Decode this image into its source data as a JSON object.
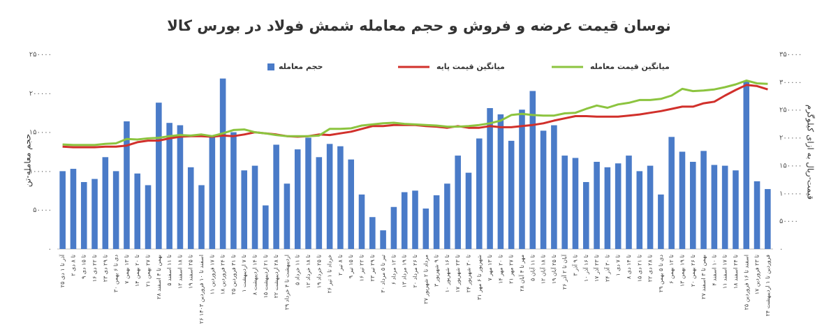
{
  "chart_data": {
    "type": "bar",
    "title": "نوسان قیمت عرضه و فروش و حجم معامله شمش فولاد در بورس کالا",
    "y_label": "حجم معامله-تن",
    "y2_label": "قیمت-ریال به ازای کیلوگرم",
    "categories": [
      "۲۵ آذر تا ۱ دی",
      "۲ تا ۸ دی",
      "۹ تا ۱۵ دی",
      "۱۶ تا ۲۲ دی",
      "۲۳ تا ۲۹ دی",
      "۳۰ دی تا ۶ بهمن",
      "۷ تا ۱۳ بهمن",
      "۱۴ تا ۲۰ بهمن",
      "۲۱ تا ۲۷ بهمن",
      "۲۸ بهمن تا ۴ اسفند",
      "۵ تا ۱۱ اسفند",
      "۱۲ تا ۱۸ اسفند",
      "۱۹ تا ۲۵ اسفند",
      "۲۶ اسفند تا ۱۰ فروردین ۱۴۰۳",
      "۱۱ تا ۱۷ فروردین",
      "۱۸ تا ۲۴ فروردین",
      "۲۵ تا ۳۱ فروردین",
      "۱ تا ۷ اردیبهشت",
      "۸ تا ۱۴ اردیبهشت",
      "۱۵ تا ۲۱ اردیبهشت",
      "۲۲ تا ۲۸ اردیبهشت",
      "۲۹ اردیبهشت تا ۴ خرداد",
      "۵ تا ۱۱ خرداد",
      "۱۲ تا ۱۸ خرداد",
      "۱۹ تا ۲۵ خرداد",
      "۲۶ خرداد تا ۱ تیر",
      "۲ تا ۸ تیر",
      "۹ تا ۱۵ تیر",
      "۱۶ تا ۲۲ تیر",
      "۲۳ تا ۲۹ تیر",
      "۳۰ تیر تا ۵ مرداد",
      "۶ تا ۱۲ مرداد",
      "۱۳ تا ۱۹ مرداد",
      "۲۰ تا ۲۶ مرداد",
      "۲۷ مرداد تا ۲ شهریور",
      "۳ تا ۹ شهریور",
      "۱۰ تا ۱۶ شهریور",
      "۱۷ تا ۲۳ شهریور",
      "۲۴ تا ۳۰ شهریور",
      "۳۱ شهریور تا ۶ مهر",
      "۷ تا ۱۳ مهر",
      "۱۴ تا ۲۰ مهر",
      "۲۱ تا ۲۷ مهر",
      "۲۸ مهر تا ۴ آبان",
      "۵ تا ۱۱ آبان",
      "۱۲ تا ۱۸ آبان",
      "۱۹ تا ۲۵ آبان",
      "۲۶ آبان تا ۲ آذر",
      "۳ تا ۹ آذر",
      "۱۰ تا ۱۶ آذر",
      "۱۷ تا ۲۳ آذر",
      "۲۴ تا ۳۰ آذر",
      "۱ تا ۷ دی",
      "۸ تا ۱۴ دی",
      "۱۵ تا ۲۱ دی",
      "۲۲ تا ۲۸ دی",
      "۲۹ دی تا ۵ بهمن",
      "۶ تا ۱۲ بهمن",
      "۱۳ تا ۱۹ بهمن",
      "۲۰ تا ۲۶ بهمن",
      "۲۷ بهمن تا ۳ اسفند",
      "۴ تا ۱۰ اسفند",
      "۱۱ تا ۱۷ اسفند",
      "۱۸ تا ۲۴ اسفند",
      "۲۵ اسفند تا ۱۶ فروردین",
      "۱۷ تا ۲۳ فروردین",
      "۲۴ فروردین تا ۱ اردیبهشت"
    ],
    "series": [
      {
        "name": "حجم معامله",
        "type": "bar",
        "color": "#4a7bc8",
        "values": [
          100000,
          103000,
          86000,
          90000,
          118000,
          100000,
          164000,
          97000,
          82000,
          188000,
          162000,
          159000,
          105000,
          82000,
          145000,
          219000,
          150000,
          101000,
          107000,
          56000,
          134000,
          84000,
          128000,
          143000,
          118000,
          135000,
          132000,
          115000,
          70000,
          41000,
          24000,
          54000,
          73000,
          75000,
          52000,
          69000,
          84000,
          120000,
          98000,
          142000,
          181000,
          173000,
          139000,
          179000,
          203000,
          152000,
          159000,
          120000,
          117000,
          86000,
          112000,
          105000,
          110000,
          120000,
          100000,
          107000,
          70000,
          144000,
          125000,
          112000,
          126000,
          108000,
          107000,
          101000,
          215000,
          87000,
          77000
        ]
      },
      {
        "name": "میانگین قیمت پایه",
        "type": "line",
        "axis": "y2",
        "color": "#d1302b",
        "values": [
          184000,
          183000,
          183000,
          183000,
          184000,
          184000,
          186000,
          192000,
          195000,
          195000,
          199000,
          202000,
          203000,
          203000,
          202000,
          204000,
          203000,
          206000,
          210000,
          208000,
          206000,
          203000,
          202000,
          203000,
          206000,
          205000,
          208000,
          211000,
          216000,
          221000,
          221000,
          223000,
          223000,
          223000,
          221000,
          220000,
          218000,
          221000,
          218000,
          218000,
          221000,
          219000,
          219000,
          221000,
          223000,
          226000,
          231000,
          235000,
          239000,
          239000,
          238000,
          238000,
          238000,
          240000,
          242000,
          245000,
          248000,
          252000,
          256000,
          256000,
          262000,
          265000,
          276000,
          286000,
          295000,
          293000,
          287000
        ]
      },
      {
        "name": "میانگین قیمت معامله",
        "type": "line",
        "axis": "y2",
        "color": "#8cc43f",
        "values": [
          188000,
          187000,
          187000,
          187000,
          189000,
          190000,
          198000,
          197000,
          199000,
          200000,
          203000,
          205000,
          204000,
          206000,
          203000,
          208000,
          214000,
          215000,
          210000,
          208000,
          205000,
          203000,
          203000,
          203000,
          204000,
          216000,
          216000,
          217000,
          222000,
          224000,
          226000,
          227000,
          225000,
          224000,
          223000,
          222000,
          220000,
          220000,
          221000,
          223000,
          226000,
          231000,
          241000,
          243000,
          241000,
          240000,
          240000,
          244000,
          245000,
          252000,
          258000,
          254000,
          260000,
          263000,
          268000,
          268000,
          270000,
          276000,
          288000,
          284000,
          285000,
          287000,
          291000,
          296000,
          303000,
          298000,
          297000
        ]
      }
    ],
    "ylim": [
      0,
      250000
    ],
    "yticks": [
      {
        "value": 0,
        "label": "۰"
      },
      {
        "value": 50000,
        "label": "۵۰۰۰۰"
      },
      {
        "value": 100000,
        "label": "۱۰۰۰۰۰"
      },
      {
        "value": 150000,
        "label": "۱۵۰۰۰۰"
      },
      {
        "value": 200000,
        "label": "۲۰۰۰۰۰"
      },
      {
        "value": 250000,
        "label": "۲۵۰۰۰۰"
      }
    ],
    "y2lim": [
      0,
      350000
    ],
    "y2ticks": [
      {
        "value": 0,
        "label": "۰"
      },
      {
        "value": 50000,
        "label": "۵۰۰۰۰"
      },
      {
        "value": 100000,
        "label": "۱۰۰۰۰۰"
      },
      {
        "value": 150000,
        "label": "۱۵۰۰۰۰"
      },
      {
        "value": 200000,
        "label": "۲۰۰۰۰۰"
      },
      {
        "value": 250000,
        "label": "۲۵۰۰۰۰"
      },
      {
        "value": 300000,
        "label": "۳۰۰۰۰۰"
      },
      {
        "value": 350000,
        "label": "۳۵۰۰۰۰"
      }
    ],
    "grid": false,
    "legend": "top"
  }
}
